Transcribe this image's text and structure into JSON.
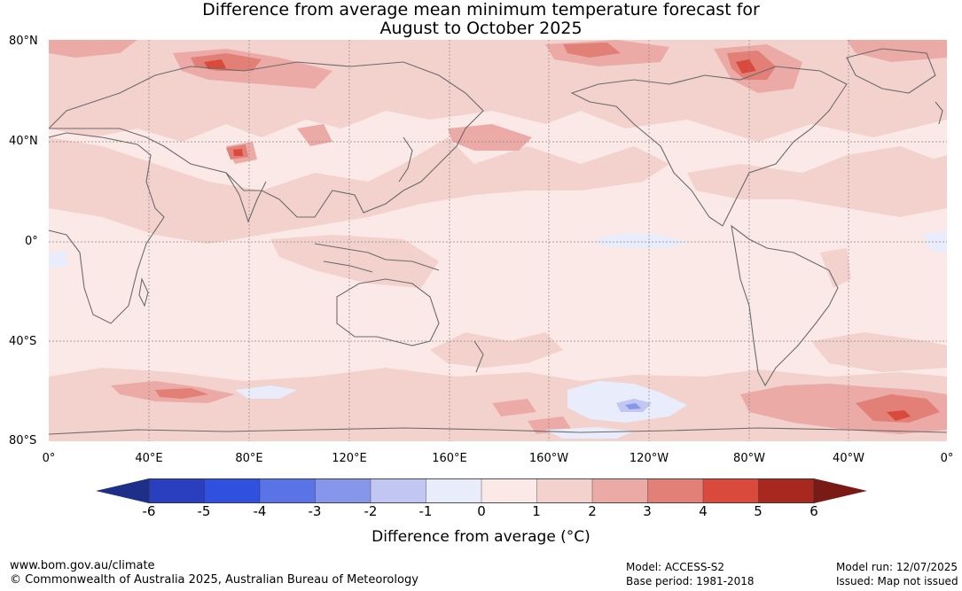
{
  "title": {
    "line1": "Difference from average mean minimum temperature forecast for",
    "line2": "August to October 2025"
  },
  "map": {
    "lat_labels": [
      "80°N",
      "40°N",
      "0°",
      "40°S",
      "80°S"
    ],
    "lon_labels": [
      "0°",
      "40°E",
      "80°E",
      "120°E",
      "160°E",
      "160°W",
      "120°W",
      "80°W",
      "40°W",
      "0°"
    ],
    "land_outline_color": "#6b6b6b",
    "grid_color": "#888888"
  },
  "colorbar": {
    "ticks": [
      "-6",
      "-5",
      "-4",
      "-3",
      "-2",
      "-1",
      "0",
      "1",
      "2",
      "3",
      "4",
      "5",
      "6"
    ],
    "colors": [
      "#1e2f8a",
      "#2a3fbf",
      "#3050e0",
      "#5a73e6",
      "#8696ea",
      "#c1c7f2",
      "#e9ecfa",
      "#fbe9e7",
      "#f3d1cd",
      "#ebaaa5",
      "#e27f76",
      "#d94a3d",
      "#a8271f",
      "#7a1a15"
    ],
    "title": "Difference from average (°C)"
  },
  "footer": {
    "url": "www.bom.gov.au/climate",
    "copyright": "© Commonwealth of Australia 2025, Australian Bureau of Meteorology",
    "model": "Model: ACCESS-S2",
    "base_period": "Base period: 1981-2018",
    "model_run": "Model run: 12/07/2025",
    "issued": "Issued: Map not issued"
  }
}
